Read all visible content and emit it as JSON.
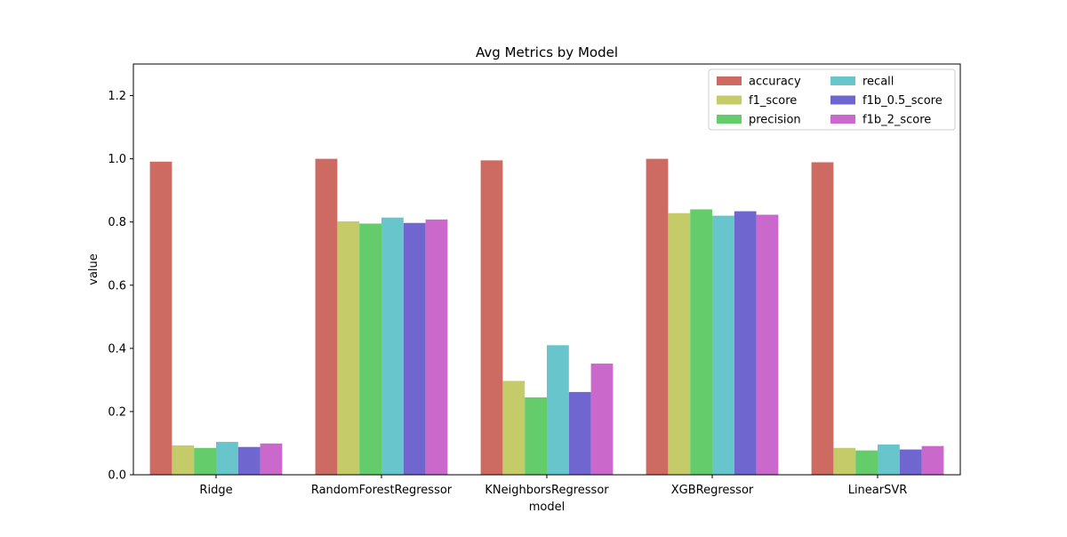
{
  "chart_data": {
    "type": "bar",
    "title": "Avg Metrics by Model",
    "xlabel": "model",
    "ylabel": "value",
    "ylim": [
      0,
      1.3
    ],
    "yticks": [
      "0.0",
      "0.2",
      "0.4",
      "0.6",
      "0.8",
      "1.0",
      "1.2"
    ],
    "ytick_values": [
      0,
      0.2,
      0.4,
      0.6,
      0.8,
      1.0,
      1.2
    ],
    "grid": false,
    "legend_position": "top-right",
    "categories": [
      "Ridge",
      "RandomForestRegressor",
      "KNeighborsRegressor",
      "XGBRegressor",
      "LinearSVR"
    ],
    "series": [
      {
        "name": "accuracy",
        "color": "#cd6b63",
        "values": [
          0.991,
          1.0,
          0.995,
          1.0,
          0.989
        ]
      },
      {
        "name": "f1_score",
        "color": "#c5cb69",
        "values": [
          0.093,
          0.802,
          0.297,
          0.828,
          0.085
        ]
      },
      {
        "name": "precision",
        "color": "#64cc6b",
        "values": [
          0.085,
          0.795,
          0.245,
          0.84,
          0.077
        ]
      },
      {
        "name": "recall",
        "color": "#69c5cc",
        "values": [
          0.104,
          0.814,
          0.41,
          0.82,
          0.096
        ]
      },
      {
        "name": "f1b_0.5_score",
        "color": "#6f66cf",
        "values": [
          0.088,
          0.797,
          0.262,
          0.834,
          0.08
        ]
      },
      {
        "name": "f1b_2_score",
        "color": "#ca69cb",
        "values": [
          0.099,
          0.808,
          0.352,
          0.823,
          0.091
        ]
      }
    ]
  }
}
